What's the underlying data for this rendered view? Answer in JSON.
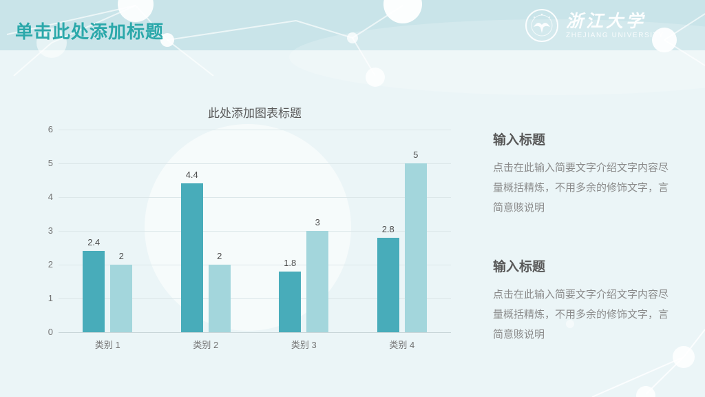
{
  "header": {
    "title": "单击此处添加标题",
    "logo": {
      "name_cn": "浙江大学",
      "name_en": "ZHEJIANG UNIVERSITY"
    }
  },
  "chart_data": {
    "type": "bar",
    "title": "此处添加图表标题",
    "categories": [
      "类别 1",
      "类别 2",
      "类别 3",
      "类别 4"
    ],
    "series": [
      {
        "values": [
          2.4,
          4.4,
          1.8,
          2.8
        ],
        "labels": [
          "2.4",
          "4.4",
          "1.8",
          "2.8"
        ],
        "color": "#48ACBA"
      },
      {
        "values": [
          2,
          2,
          3,
          5
        ],
        "labels": [
          "2",
          "2",
          "3",
          "5"
        ],
        "color": "#A3D6DC"
      }
    ],
    "ylim": [
      0,
      6
    ],
    "yticks": [
      0,
      1,
      2,
      3,
      4,
      5,
      6
    ],
    "grid": true,
    "legend": false,
    "xlabel": "",
    "ylabel": ""
  },
  "info_blocks": [
    {
      "heading": "输入标题",
      "body": "点击在此输入简要文字介绍文字内容尽量概括精炼，不用多余的修饰文字，言简意赅说明"
    },
    {
      "heading": "输入标题",
      "body": "点击在此输入简要文字介绍文字内容尽量概括精炼，不用多余的修饰文字，言简意赅说明"
    }
  ],
  "colors": {
    "header_bg": "#C9E4E9",
    "body_bg": "#EBF5F7",
    "title_teal": "#2BA8AA",
    "series_dark": "#48ACBA",
    "series_light": "#A3D6DC"
  }
}
